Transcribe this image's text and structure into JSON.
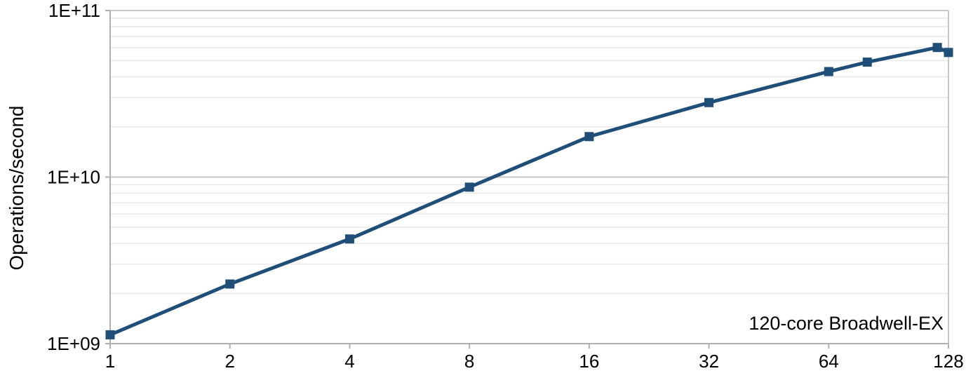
{
  "chart_data": {
    "type": "line",
    "title": "",
    "xlabel": "",
    "ylabel": "Operations/second",
    "annotation": "120-core Broadwell-EX",
    "x_scale": "log2",
    "y_scale": "log10",
    "xlim": [
      1,
      128
    ],
    "ylim": [
      1000000000.0,
      100000000000.0
    ],
    "grid": "horizontal major and log-minor lines, no vertical gridlines",
    "legend": "none",
    "x": [
      1,
      2,
      4,
      8,
      16,
      32,
      64,
      80,
      120,
      128
    ],
    "series": [
      {
        "name": "Operations/second",
        "values": [
          1130000000.0,
          2280000000.0,
          4250000000.0,
          8700000000.0,
          17500000000.0,
          28000000000.0,
          43000000000.0,
          49000000000.0,
          60000000000.0,
          56000000000.0
        ]
      }
    ],
    "x_ticks": [
      1,
      2,
      4,
      8,
      16,
      32,
      64,
      128
    ],
    "x_tick_labels": [
      "1",
      "2",
      "4",
      "8",
      "16",
      "32",
      "64",
      "128"
    ],
    "y_ticks": [
      {
        "value": 1000000000.0,
        "label": "1E+09"
      },
      {
        "value": 10000000000.0,
        "label": "1E+10"
      },
      {
        "value": 100000000000.0,
        "label": "1E+11"
      }
    ],
    "marker": "filled-square",
    "colors": {
      "series": "#1F4E79",
      "major_grid": "#c8c8c8",
      "minor_grid": "#e8e8e8",
      "axis": "#b0b0b0",
      "text": "#000000",
      "background": "#ffffff"
    }
  }
}
